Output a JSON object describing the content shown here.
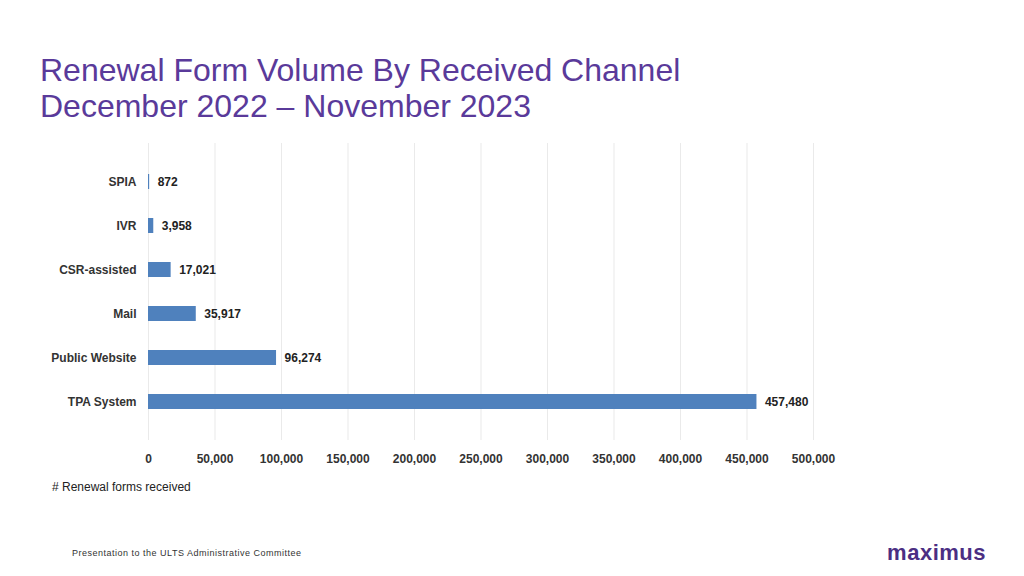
{
  "chart_data": {
    "type": "bar",
    "orientation": "horizontal",
    "title": "Renewal Form Volume By Received Channel",
    "subtitle": "December 2022 – November 2023",
    "categories": [
      "SPIA",
      "IVR",
      "CSR-assisted",
      "Mail",
      "Public Website",
      "TPA System"
    ],
    "values": [
      872,
      3958,
      17021,
      35917,
      96274,
      457480
    ],
    "value_labels": [
      "872",
      "3,958",
      "17,021",
      "35,917",
      "96,274",
      "457,480"
    ],
    "data_labels": true,
    "color": "#4f81bd",
    "xlabel": "# Renewal forms received",
    "xlim": [
      0,
      500000
    ],
    "xticks": [
      0,
      {
        "value": 50000,
        "label": "50,000"
      },
      {
        "value": 100000,
        "label": "100,000"
      },
      {
        "value": 150000,
        "label": "150,000"
      },
      {
        "value": 200000,
        "label": "200,000"
      },
      {
        "value": 250000,
        "label": "250,000"
      },
      {
        "value": 300000,
        "label": "300,000"
      },
      {
        "value": 350000,
        "label": "350,000"
      },
      {
        "value": 400000,
        "label": "400,000"
      },
      {
        "value": 450000,
        "label": "450,000"
      },
      {
        "value": 500000,
        "label": "500,000"
      }
    ],
    "grid": true,
    "footer": "Presentation to the ULTS Administrative Committee",
    "brand": "maximus"
  }
}
